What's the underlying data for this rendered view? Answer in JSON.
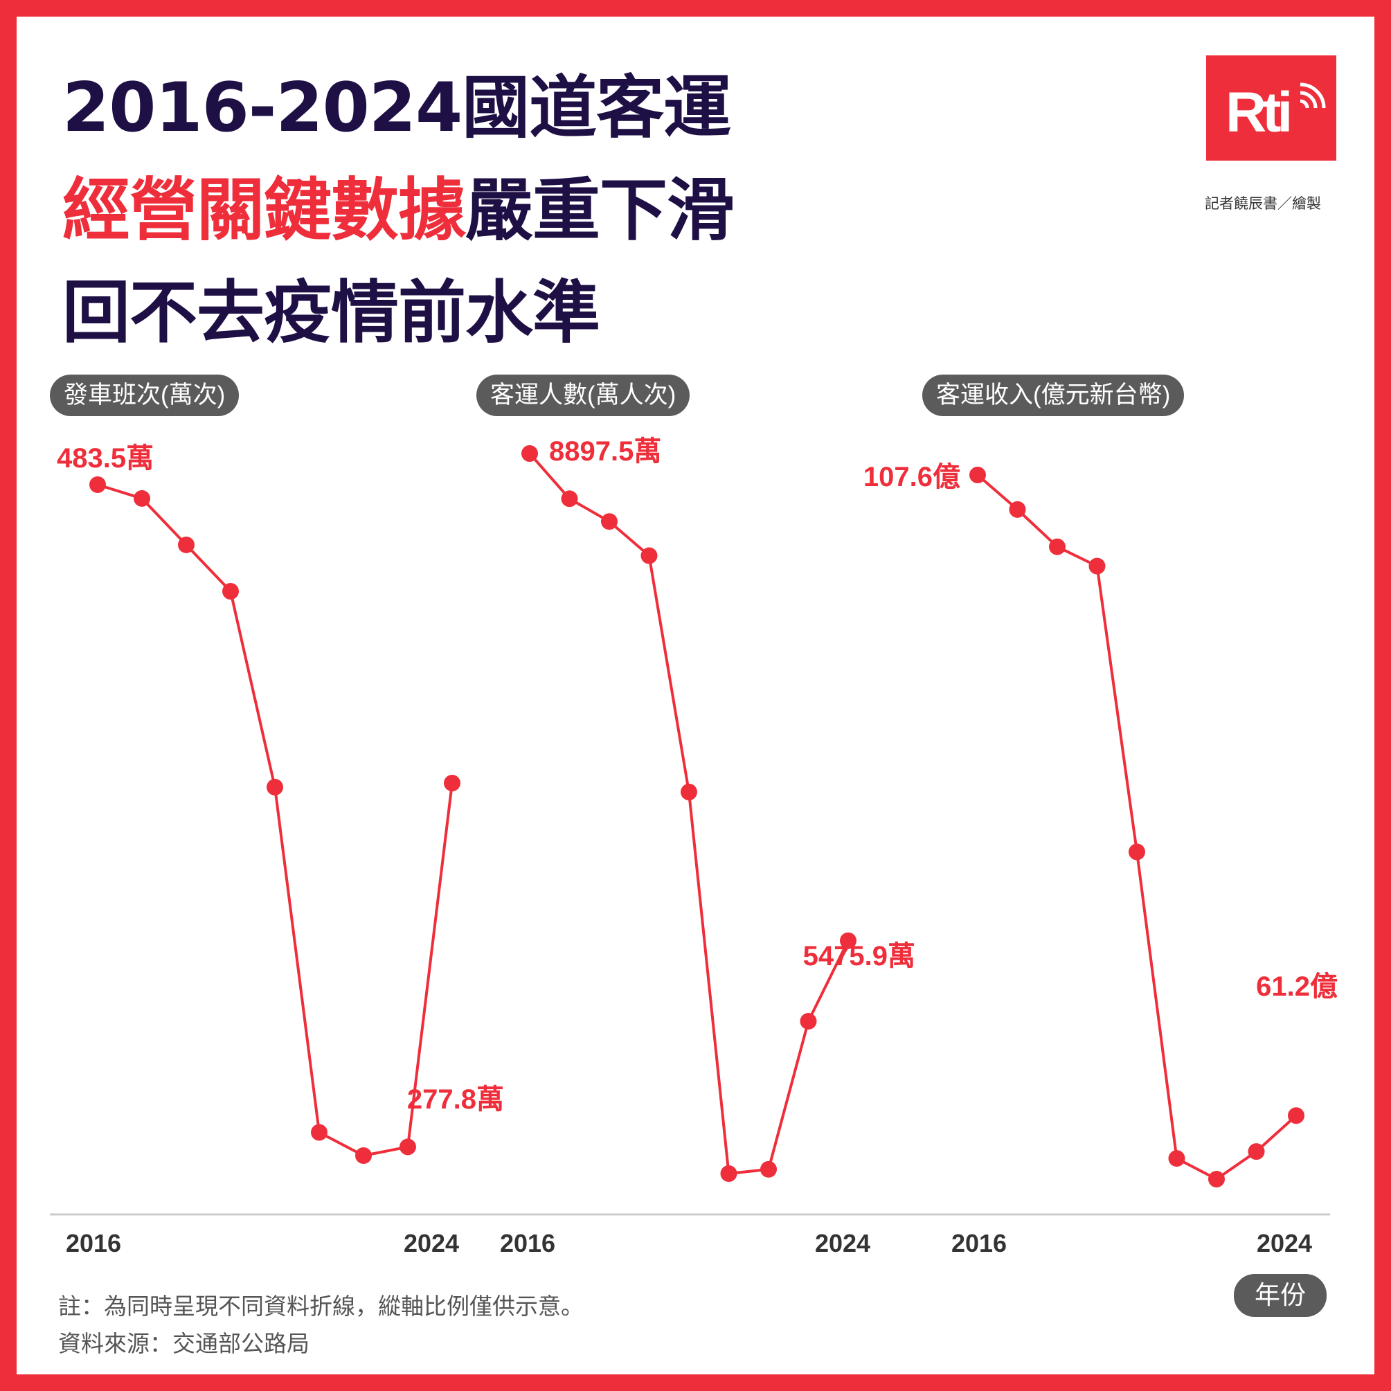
{
  "title": {
    "line1": "2016-2024國道客運",
    "line2_highlight": "經營關鍵數據",
    "line2_rest": "嚴重下滑",
    "line3": "回不去疫情前水準"
  },
  "brand": {
    "logo_text": "Rti",
    "credit": "記者饒辰書／繪製"
  },
  "colors": {
    "accent": "#ee2e3a",
    "title": "#1e0f45",
    "pill": "#5b5b5b"
  },
  "x_unit_label": "年份",
  "notes": {
    "note": "註：為同時呈現不同資料折線，縱軸比例僅供示意。",
    "source": "資料來源：交通部公路局"
  },
  "chart_data": [
    {
      "type": "line",
      "title": "發車班次(萬次)",
      "x": [
        2016,
        2017,
        2018,
        2019,
        2020,
        2021,
        2022,
        2023,
        2024
      ],
      "x_tick_labels": [
        "2016",
        "2024"
      ],
      "values": [
        483.5,
        474,
        442,
        410,
        275,
        37,
        21,
        27,
        277.8
      ],
      "point_labels": [
        {
          "index": 0,
          "text": "483.5萬"
        },
        {
          "index": 8,
          "text": "277.8萬"
        }
      ],
      "values_note": "未標示的點由圖形位置估計"
    },
    {
      "type": "line",
      "title": "客運人數(萬人次)",
      "x": [
        2016,
        2017,
        2018,
        2019,
        2020,
        2021,
        2022,
        2023,
        2024
      ],
      "x_tick_labels": [
        "2016",
        "2024"
      ],
      "values": [
        8897.5,
        8580,
        8420,
        8180,
        6520,
        3840,
        3870,
        4910,
        5475.9
      ],
      "point_labels": [
        {
          "index": 0,
          "text": "8897.5萬"
        },
        {
          "index": 8,
          "text": "5475.9萬"
        }
      ]
    },
    {
      "type": "line",
      "title": "客運收入(億元新台幣)",
      "x": [
        2016,
        2017,
        2018,
        2019,
        2020,
        2021,
        2022,
        2023,
        2024
      ],
      "x_tick_labels": [
        "2016",
        "2024"
      ],
      "values": [
        107.6,
        105.1,
        102.4,
        101.0,
        80.3,
        58.1,
        56.6,
        58.6,
        61.2
      ],
      "point_labels": [
        {
          "index": 0,
          "text": "107.6億"
        },
        {
          "index": 8,
          "text": "61.2億"
        }
      ]
    }
  ]
}
